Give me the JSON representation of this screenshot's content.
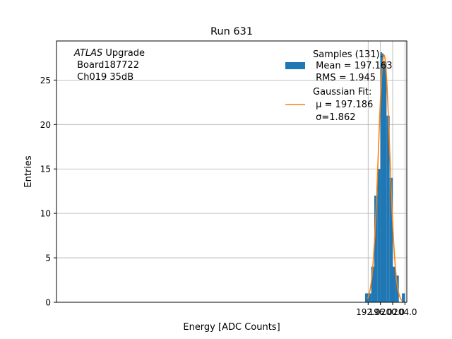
{
  "chart_data": {
    "type": "bar",
    "title": "Run 631",
    "xlabel": "Energy [ADC Counts]",
    "ylabel": "Entries",
    "xlim": [
      90.4,
      204.6
    ],
    "ylim": [
      0,
      29.4
    ],
    "xticks": [
      192.0,
      196.0,
      200.0,
      204.0
    ],
    "xtick_labels": [
      "192.0",
      "196.0",
      "200.0",
      "204.0"
    ],
    "yticks": [
      0,
      5,
      10,
      15,
      20,
      25
    ],
    "ytick_labels": [
      "0",
      "5",
      "10",
      "15",
      "20",
      "25"
    ],
    "grid": true,
    "bins": [
      {
        "x0": 191,
        "x1": 192,
        "count": 1
      },
      {
        "x0": 192,
        "x1": 193,
        "count": 1
      },
      {
        "x0": 193,
        "x1": 194,
        "count": 4
      },
      {
        "x0": 194,
        "x1": 195,
        "count": 12
      },
      {
        "x0": 195,
        "x1": 196,
        "count": 15
      },
      {
        "x0": 196,
        "x1": 197,
        "count": 28
      },
      {
        "x0": 197,
        "x1": 198,
        "count": 27
      },
      {
        "x0": 198,
        "x1": 199,
        "count": 21
      },
      {
        "x0": 199,
        "x1": 200,
        "count": 14
      },
      {
        "x0": 200,
        "x1": 201,
        "count": 4
      },
      {
        "x0": 201,
        "x1": 202,
        "count": 3
      },
      {
        "x0": 202,
        "x1": 203,
        "count": 0
      },
      {
        "x0": 203,
        "x1": 204,
        "count": 1
      }
    ],
    "histogram_color": "#1f77b4",
    "fit": {
      "type": "gaussian",
      "mu": 197.186,
      "sigma": 1.862,
      "amplitude": 27.8,
      "x_range": [
        191.8,
        203.1
      ],
      "color": "#ff7f0e"
    },
    "annotation": {
      "line1_italic": "ATLAS",
      "line1_rest": " Upgrade",
      "line2": " Board187722",
      "line3": " Ch019 35dB"
    },
    "legend": {
      "position": "top-right",
      "samples_lines": [
        "Samples (131):",
        " Mean = 197.163",
        " RMS = 1.945"
      ],
      "fit_lines": [
        "Gaussian Fit:",
        " μ = 197.186",
        " σ=1.862"
      ]
    }
  }
}
